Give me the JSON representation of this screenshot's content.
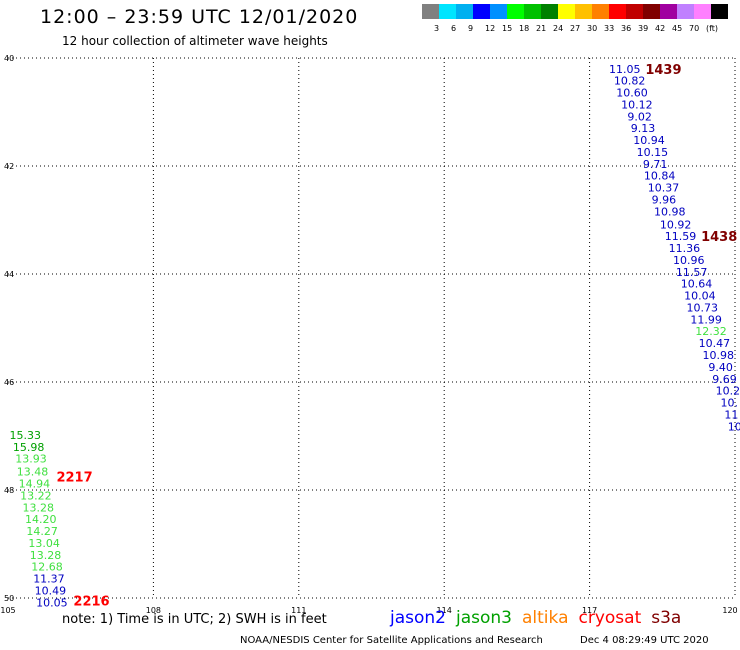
{
  "header": {
    "title": "12:00 – 23:59 UTC 12/01/2020",
    "subtitle": "12 hour collection of altimeter wave heights"
  },
  "colorbar": {
    "colors": [
      "#808080",
      "#00e5ff",
      "#00b0f0",
      "#0000ff",
      "#0090ff",
      "#00ff00",
      "#00c000",
      "#008000",
      "#ffff00",
      "#ffc000",
      "#ff8000",
      "#ff0000",
      "#c00000",
      "#800000",
      "#a000a0",
      "#c080ff",
      "#ff80ff",
      "#000000"
    ],
    "labels": [
      "3",
      "6",
      "9",
      "12",
      "15",
      "18",
      "21",
      "24",
      "27",
      "30",
      "33",
      "36",
      "39",
      "42",
      "45",
      "70",
      "(ft)"
    ]
  },
  "axes": {
    "lon_ticks": [
      "105",
      "108",
      "111",
      "114",
      "117",
      "120"
    ],
    "lat_ticks": [
      "40",
      "42",
      "44",
      "46",
      "48",
      "50"
    ]
  },
  "times": [
    {
      "text": "1439",
      "lon": 118.15,
      "lat": 40.2,
      "color": "#800000"
    },
    {
      "text": "1438",
      "lon": 119.3,
      "lat": 43.3,
      "color": "#800000"
    },
    {
      "text": "2217",
      "lon": 106.0,
      "lat": 47.75,
      "color": "#ff0000"
    },
    {
      "text": "2216",
      "lon": 106.35,
      "lat": 50.05,
      "color": "#ff0000"
    }
  ],
  "swh": [
    {
      "v": "11.05",
      "lon": 117.4,
      "lat": 40.2,
      "color": "#0000c0"
    },
    {
      "v": "10.82",
      "lon": 117.5,
      "lat": 40.42,
      "color": "#0000c0"
    },
    {
      "v": "10.60",
      "lon": 117.55,
      "lat": 40.64,
      "color": "#0000c0"
    },
    {
      "v": "10.12",
      "lon": 117.65,
      "lat": 40.86,
      "color": "#0000c0"
    },
    {
      "v": "9.02",
      "lon": 117.78,
      "lat": 41.08,
      "color": "#0000c0"
    },
    {
      "v": "9.13",
      "lon": 117.85,
      "lat": 41.3,
      "color": "#0000c0"
    },
    {
      "v": "10.94",
      "lon": 117.9,
      "lat": 41.52,
      "color": "#0000c0"
    },
    {
      "v": "10.15",
      "lon": 117.97,
      "lat": 41.74,
      "color": "#0000c0"
    },
    {
      "v": "9.71",
      "lon": 118.1,
      "lat": 41.96,
      "color": "#0000c0"
    },
    {
      "v": "10.84",
      "lon": 118.12,
      "lat": 42.18,
      "color": "#0000c0"
    },
    {
      "v": "10.37",
      "lon": 118.2,
      "lat": 42.4,
      "color": "#0000c0"
    },
    {
      "v": "9.96",
      "lon": 118.28,
      "lat": 42.62,
      "color": "#0000c0"
    },
    {
      "v": "10.98",
      "lon": 118.33,
      "lat": 42.84,
      "color": "#0000c0"
    },
    {
      "v": "10.92",
      "lon": 118.45,
      "lat": 43.08,
      "color": "#0000c0"
    },
    {
      "v": "11.59",
      "lon": 118.55,
      "lat": 43.3,
      "color": "#0000c0"
    },
    {
      "v": "11.36",
      "lon": 118.63,
      "lat": 43.52,
      "color": "#0000c0"
    },
    {
      "v": "10.96",
      "lon": 118.72,
      "lat": 43.74,
      "color": "#0000c0"
    },
    {
      "v": "11.57",
      "lon": 118.78,
      "lat": 43.96,
      "color": "#0000c0"
    },
    {
      "v": "10.64",
      "lon": 118.88,
      "lat": 44.18,
      "color": "#0000c0"
    },
    {
      "v": "10.04",
      "lon": 118.95,
      "lat": 44.4,
      "color": "#0000c0"
    },
    {
      "v": "10.73",
      "lon": 119.0,
      "lat": 44.62,
      "color": "#0000c0"
    },
    {
      "v": "11.99",
      "lon": 119.08,
      "lat": 44.84,
      "color": "#0000c0"
    },
    {
      "v": "12.32",
      "lon": 119.18,
      "lat": 45.06,
      "color": "#40e040"
    },
    {
      "v": "10.47",
      "lon": 119.25,
      "lat": 45.28,
      "color": "#0000c0"
    },
    {
      "v": "10.98",
      "lon": 119.33,
      "lat": 45.5,
      "color": "#0000c0"
    },
    {
      "v": "9.40",
      "lon": 119.45,
      "lat": 45.72,
      "color": "#0000c0"
    },
    {
      "v": "9.69",
      "lon": 119.53,
      "lat": 45.94,
      "color": "#0000c0"
    },
    {
      "v": "10.2",
      "lon": 119.6,
      "lat": 46.16,
      "color": "#0000c0"
    },
    {
      "v": "10.",
      "lon": 119.7,
      "lat": 46.38,
      "color": "#0000c0"
    },
    {
      "v": "11",
      "lon": 119.78,
      "lat": 46.6,
      "color": "#0000c0"
    },
    {
      "v": "10",
      "lon": 119.85,
      "lat": 46.82,
      "color": "#0000c0"
    },
    {
      "v": "15.33",
      "lon": 105.03,
      "lat": 46.98,
      "color": "#00a000"
    },
    {
      "v": "15.98",
      "lon": 105.1,
      "lat": 47.2,
      "color": "#00a000"
    },
    {
      "v": "13.93",
      "lon": 105.15,
      "lat": 47.42,
      "color": "#40e040"
    },
    {
      "v": "13.48",
      "lon": 105.18,
      "lat": 47.66,
      "color": "#40e040"
    },
    {
      "v": "14.94",
      "lon": 105.22,
      "lat": 47.88,
      "color": "#40e040"
    },
    {
      "v": "13.22",
      "lon": 105.25,
      "lat": 48.1,
      "color": "#40e040"
    },
    {
      "v": "13.28",
      "lon": 105.3,
      "lat": 48.32,
      "color": "#40e040"
    },
    {
      "v": "14.20",
      "lon": 105.35,
      "lat": 48.54,
      "color": "#40e040"
    },
    {
      "v": "14.27",
      "lon": 105.38,
      "lat": 48.76,
      "color": "#40e040"
    },
    {
      "v": "13.04",
      "lon": 105.42,
      "lat": 48.98,
      "color": "#40e040"
    },
    {
      "v": "13.28",
      "lon": 105.45,
      "lat": 49.2,
      "color": "#40e040"
    },
    {
      "v": "12.68",
      "lon": 105.48,
      "lat": 49.42,
      "color": "#40e040"
    },
    {
      "v": "11.37",
      "lon": 105.52,
      "lat": 49.64,
      "color": "#0000c0"
    },
    {
      "v": "10.49",
      "lon": 105.55,
      "lat": 49.86,
      "color": "#0000c0"
    },
    {
      "v": "10.05",
      "lon": 105.58,
      "lat": 50.08,
      "color": "#0000c0"
    }
  ],
  "footer": {
    "note": "note:  1) Time is in UTC;  2) SWH is in feet",
    "legend": [
      {
        "name": "jason2",
        "color": "#0000ff"
      },
      {
        "name": "jason3",
        "color": "#00a000"
      },
      {
        "name": "altika",
        "color": "#ff8000"
      },
      {
        "name": "cryosat",
        "color": "#ff0000"
      },
      {
        "name": "s3a",
        "color": "#800000"
      }
    ],
    "credit": "NOAA/NESDIS Center for Satellite Applications and Research",
    "date": "Dec  4 08:29:49 UTC 2020"
  }
}
